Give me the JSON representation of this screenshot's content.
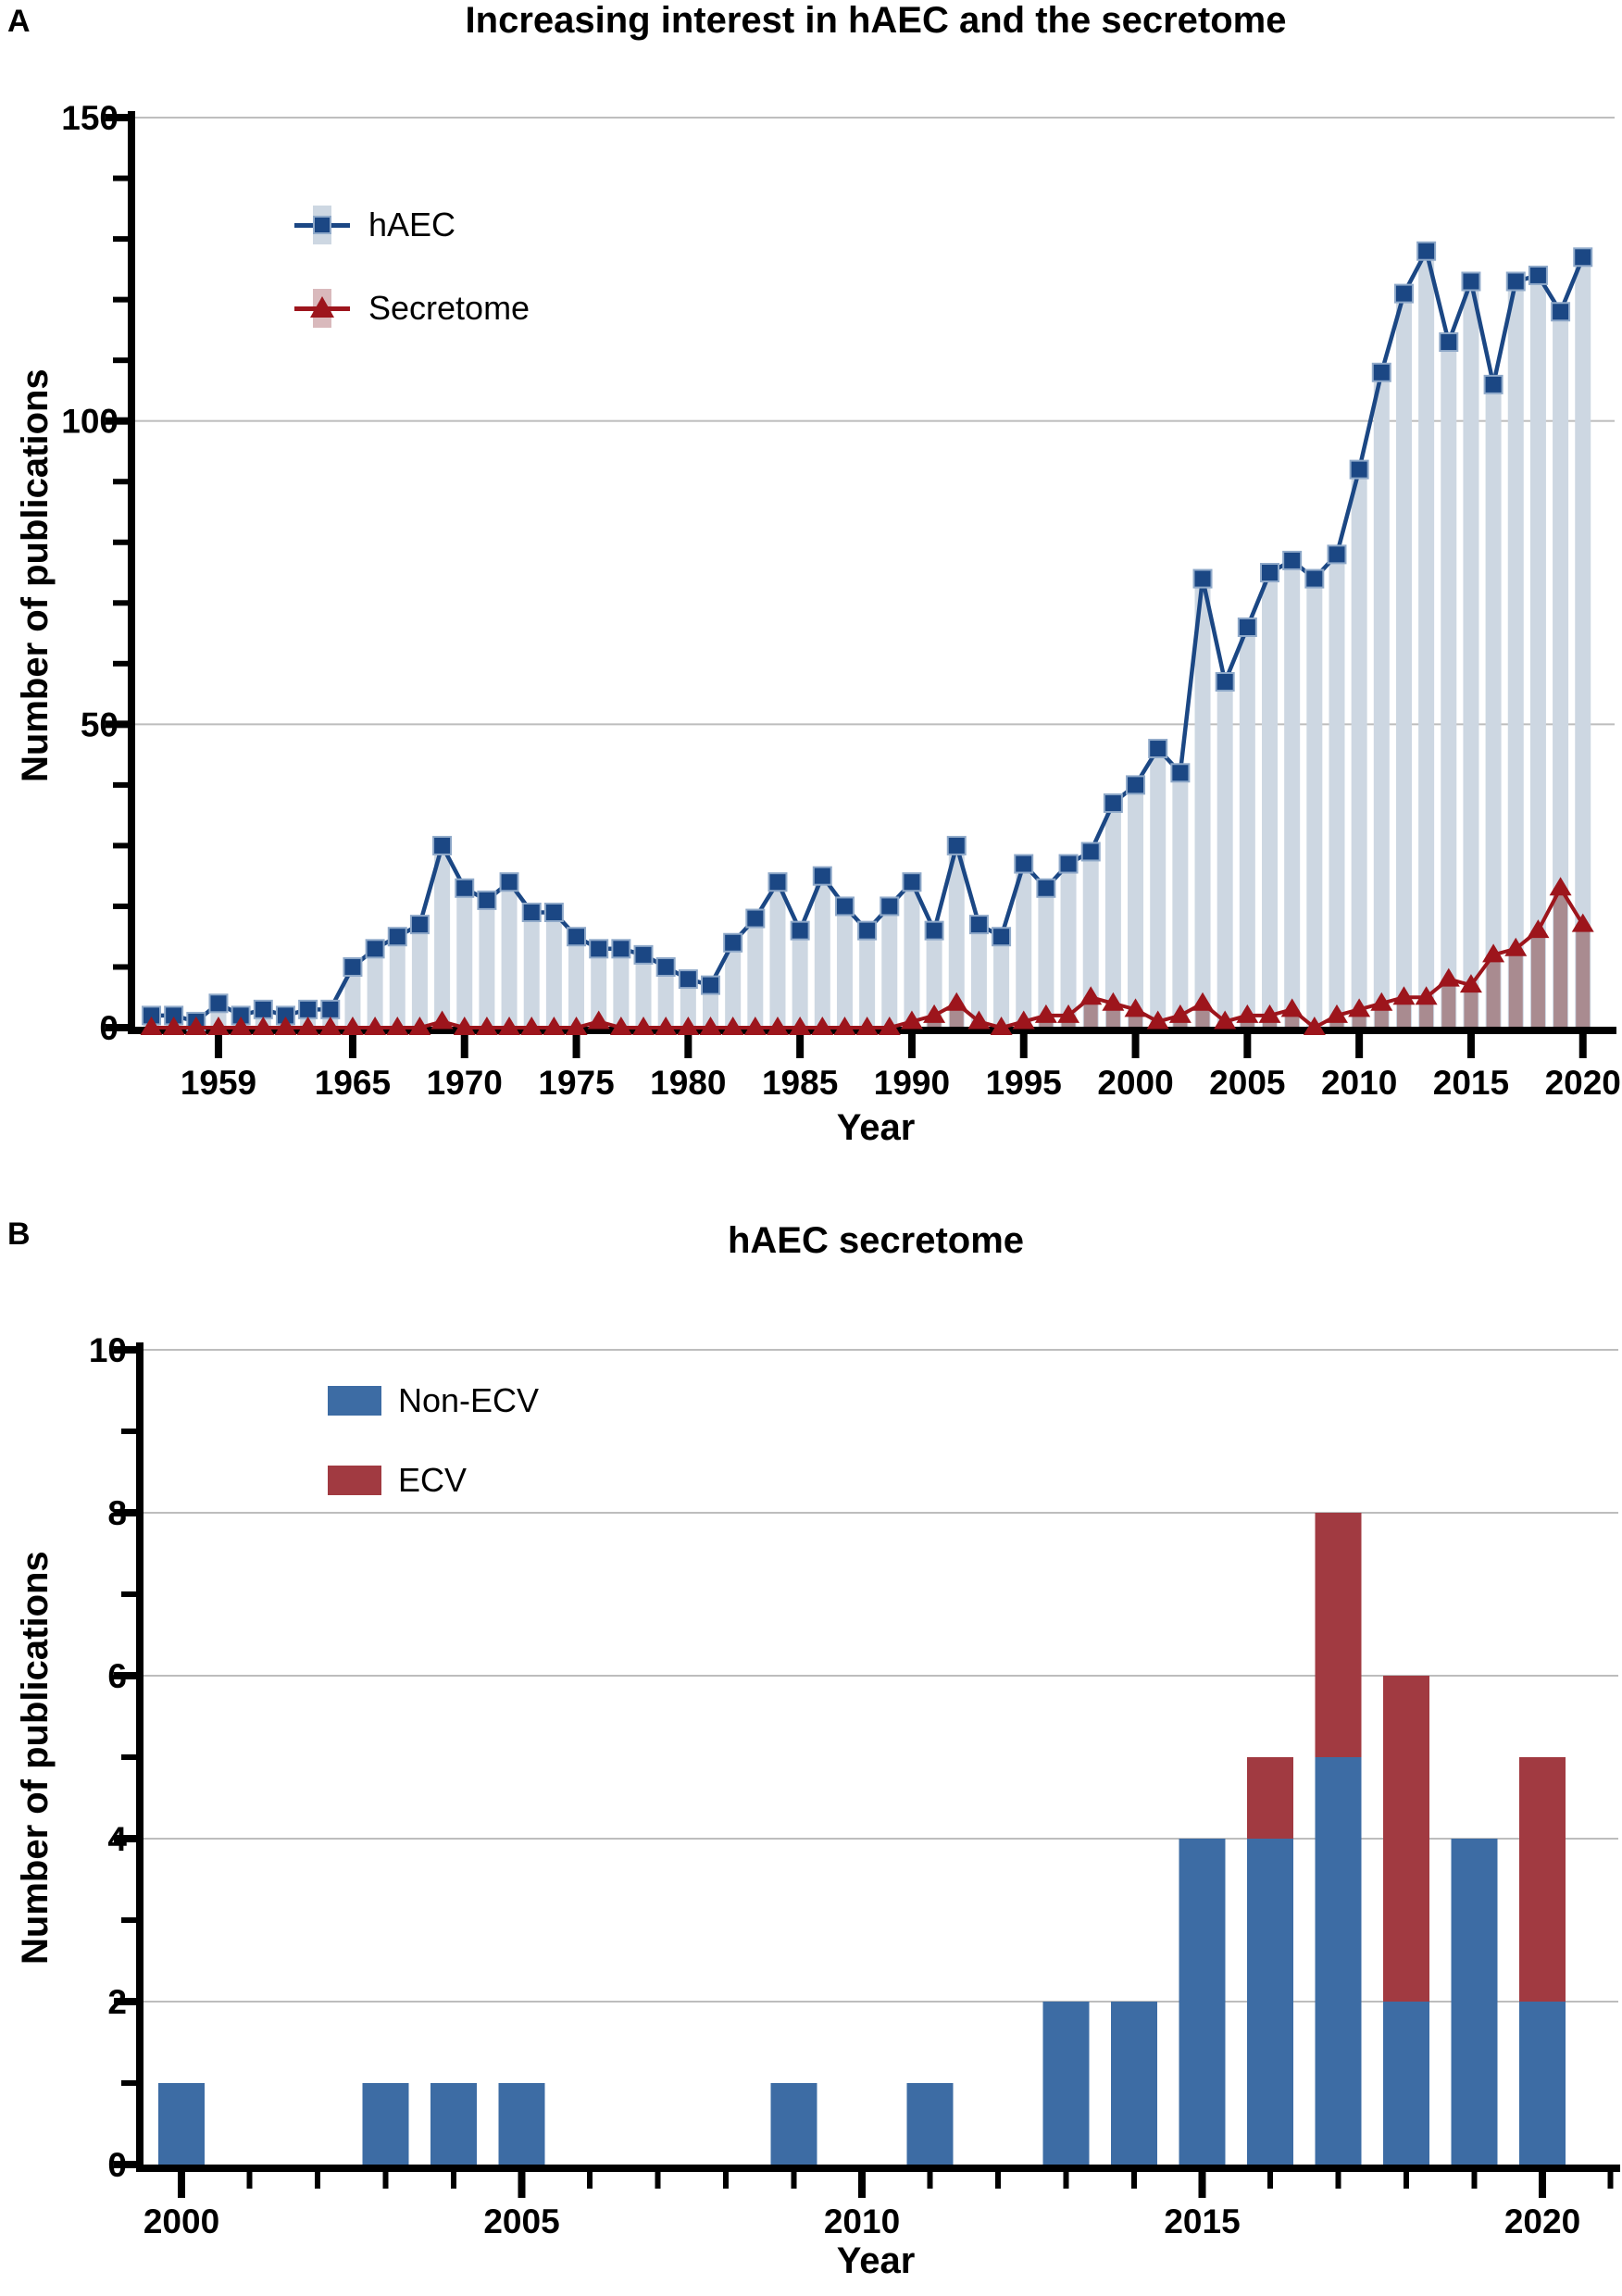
{
  "panelA": {
    "label": "A",
    "title": "Increasing interest in hAEC and the secretome",
    "y_axis_title": "Number of publications",
    "x_axis_title": "Year",
    "legend": [
      {
        "label": "hAEC",
        "marker": "square-icon"
      },
      {
        "label": "Secretome",
        "marker": "triangle-icon"
      }
    ]
  },
  "panelB": {
    "label": "B",
    "title": "hAEC secretome",
    "y_axis_title": "Number of publications",
    "x_axis_title": "Year",
    "legend": [
      {
        "label": "Non-ECV",
        "marker": "blue-square-swatch"
      },
      {
        "label": "ECV",
        "marker": "red-square-swatch"
      }
    ]
  },
  "colors": {
    "haec_line": "#1b4784",
    "haec_marker_stroke": "#8fa9c9",
    "haec_bar": "#cdd7e2",
    "secretome_line": "#9d151c",
    "secretome_bar": "#a98b90",
    "secretome_legend_band": "#d9b9bc",
    "non_ecv": "#3d6ca4",
    "ecv": "#a13a41",
    "grid": "#bdbdbd",
    "axis": "#000000"
  },
  "chart_data": [
    {
      "panel": "A",
      "type": "bar+line",
      "title": "Increasing interest in hAEC and the secretome",
      "xlabel": "Year",
      "ylabel": "Number of publications",
      "ylim": [
        0,
        150
      ],
      "y_major_ticks": [
        0,
        50,
        100,
        150
      ],
      "y_minor_step": 10,
      "grid": "horizontal-at-major-ticks",
      "legend_position": "top-left-inside",
      "x_tick_labels": [
        1959,
        1965,
        1970,
        1975,
        1980,
        1985,
        1990,
        1995,
        2000,
        2005,
        2010,
        2015,
        2020
      ],
      "years": [
        1956,
        1957,
        1958,
        1959,
        1960,
        1961,
        1962,
        1963,
        1964,
        1965,
        1966,
        1967,
        1968,
        1969,
        1970,
        1971,
        1972,
        1973,
        1974,
        1975,
        1976,
        1977,
        1978,
        1979,
        1980,
        1981,
        1982,
        1983,
        1984,
        1985,
        1986,
        1987,
        1988,
        1989,
        1990,
        1991,
        1992,
        1993,
        1994,
        1995,
        1996,
        1997,
        1998,
        1999,
        2000,
        2001,
        2002,
        2003,
        2004,
        2005,
        2006,
        2007,
        2008,
        2009,
        2010,
        2011,
        2012,
        2013,
        2014,
        2015,
        2016,
        2017,
        2018,
        2019,
        2020
      ],
      "series": [
        {
          "name": "hAEC",
          "marker": "square",
          "values": [
            2,
            2,
            1,
            4,
            2,
            3,
            2,
            3,
            3,
            10,
            13,
            15,
            17,
            30,
            23,
            21,
            24,
            19,
            19,
            15,
            13,
            13,
            12,
            10,
            8,
            7,
            14,
            18,
            24,
            16,
            25,
            20,
            16,
            20,
            24,
            16,
            30,
            17,
            15,
            27,
            23,
            27,
            29,
            37,
            40,
            46,
            42,
            74,
            57,
            66,
            75,
            77,
            74,
            78,
            92,
            108,
            121,
            128,
            113,
            123,
            106,
            123,
            124,
            118,
            127
          ]
        },
        {
          "name": "Secretome",
          "marker": "triangle",
          "values": [
            0,
            0,
            0,
            0,
            0,
            0,
            0,
            0,
            0,
            0,
            0,
            0,
            0,
            1,
            0,
            0,
            0,
            0,
            0,
            0,
            1,
            0,
            0,
            0,
            0,
            0,
            0,
            0,
            0,
            0,
            0,
            0,
            0,
            0,
            1,
            2,
            4,
            1,
            0,
            1,
            2,
            2,
            5,
            4,
            3,
            1,
            2,
            4,
            1,
            2,
            2,
            3,
            0,
            2,
            3,
            4,
            5,
            5,
            8,
            7,
            12,
            13,
            16,
            23,
            17
          ]
        }
      ]
    },
    {
      "panel": "B",
      "type": "stacked-bar",
      "title": "hAEC secretome",
      "xlabel": "Year",
      "ylabel": "Number of publications",
      "ylim": [
        0,
        10
      ],
      "y_major_ticks": [
        0,
        2,
        4,
        6,
        8,
        10
      ],
      "y_minor_step": 1,
      "grid": "horizontal-at-major-ticks",
      "legend_position": "top-left-inside",
      "x_axis_range": [
        2000,
        2021
      ],
      "x_tick_labels": [
        2000,
        2005,
        2010,
        2015,
        2020
      ],
      "categories": [
        2000,
        2003,
        2004,
        2005,
        2009,
        2011,
        2013,
        2014,
        2015,
        2016,
        2017,
        2018,
        2019,
        2020
      ],
      "series": [
        {
          "name": "Non-ECV",
          "values": [
            1,
            1,
            1,
            1,
            1,
            1,
            2,
            2,
            4,
            4,
            5,
            2,
            4,
            2
          ]
        },
        {
          "name": "ECV",
          "values": [
            0,
            0,
            0,
            0,
            0,
            0,
            0,
            0,
            0,
            1,
            3,
            4,
            0,
            3
          ]
        }
      ]
    }
  ]
}
